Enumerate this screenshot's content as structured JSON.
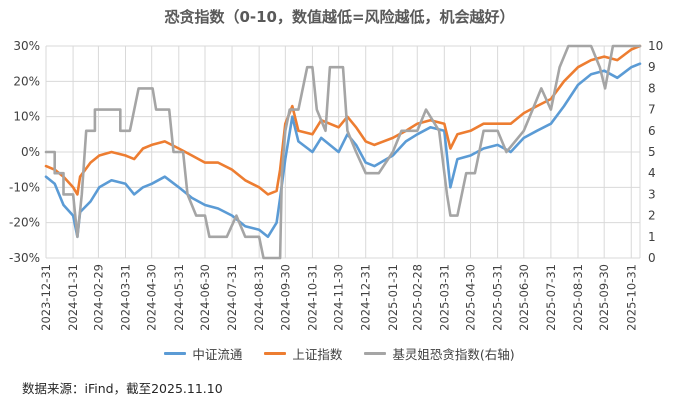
{
  "chart_data": {
    "type": "line",
    "title": "恐贪指数（0-10，数值越低=风险越低，机会越好）",
    "x_tick_labels": [
      "2023-12-31",
      "2024-01-31",
      "2024-02-29",
      "2024-03-31",
      "2024-04-30",
      "2024-05-31",
      "2024-06-30",
      "2024-07-31",
      "2024-08-31",
      "2024-09-30",
      "2024-10-31",
      "2024-11-30",
      "2024-12-31",
      "2025-01-31",
      "2025-02-28",
      "2025-03-31",
      "2025-04-30",
      "2025-05-31",
      "2025-06-30",
      "2025-07-31",
      "2025-08-31",
      "2025-09-30",
      "2025-10-31"
    ],
    "x_range": [
      "2023-12-31",
      "2025-11-10"
    ],
    "y_left": {
      "ticks": [
        "30%",
        "20%",
        "10%",
        "0%",
        "-10%",
        "-20%",
        "-30%"
      ],
      "range": [
        -30,
        30
      ],
      "unit": "%"
    },
    "y_right": {
      "ticks": [
        "10",
        "9",
        "8",
        "7",
        "6",
        "5",
        "4",
        "3",
        "2",
        "1",
        "0"
      ],
      "range": [
        0,
        10
      ]
    },
    "grid": true,
    "legend_position": "bottom",
    "series": [
      {
        "name": "中证流通",
        "axis": "left",
        "color": "#5b9bd5",
        "points": [
          [
            "2023-12-31",
            -7
          ],
          [
            "2024-01-10",
            -9
          ],
          [
            "2024-01-20",
            -15
          ],
          [
            "2024-01-31",
            -18
          ],
          [
            "2024-02-05",
            -24
          ],
          [
            "2024-02-08",
            -17
          ],
          [
            "2024-02-20",
            -14
          ],
          [
            "2024-03-01",
            -10
          ],
          [
            "2024-03-15",
            -8
          ],
          [
            "2024-03-31",
            -9
          ],
          [
            "2024-04-10",
            -12
          ],
          [
            "2024-04-20",
            -10
          ],
          [
            "2024-04-30",
            -9
          ],
          [
            "2024-05-15",
            -7
          ],
          [
            "2024-05-31",
            -10
          ],
          [
            "2024-06-15",
            -13
          ],
          [
            "2024-06-30",
            -15
          ],
          [
            "2024-07-15",
            -16
          ],
          [
            "2024-07-31",
            -18
          ],
          [
            "2024-08-15",
            -21
          ],
          [
            "2024-08-31",
            -22
          ],
          [
            "2024-09-10",
            -24
          ],
          [
            "2024-09-20",
            -20
          ],
          [
            "2024-09-24",
            -13
          ],
          [
            "2024-09-30",
            -2
          ],
          [
            "2024-10-08",
            10
          ],
          [
            "2024-10-15",
            3
          ],
          [
            "2024-10-31",
            0
          ],
          [
            "2024-11-10",
            4
          ],
          [
            "2024-11-30",
            0
          ],
          [
            "2024-12-10",
            5
          ],
          [
            "2024-12-20",
            2
          ],
          [
            "2024-12-31",
            -3
          ],
          [
            "2025-01-10",
            -4
          ],
          [
            "2025-01-31",
            -1
          ],
          [
            "2025-02-15",
            3
          ],
          [
            "2025-02-28",
            5
          ],
          [
            "2025-03-15",
            7
          ],
          [
            "2025-03-31",
            6
          ],
          [
            "2025-04-07",
            -10
          ],
          [
            "2025-04-15",
            -2
          ],
          [
            "2025-04-30",
            -1
          ],
          [
            "2025-05-15",
            1
          ],
          [
            "2025-05-31",
            2
          ],
          [
            "2025-06-15",
            0
          ],
          [
            "2025-06-30",
            4
          ],
          [
            "2025-07-15",
            6
          ],
          [
            "2025-07-31",
            8
          ],
          [
            "2025-08-15",
            13
          ],
          [
            "2025-08-31",
            19
          ],
          [
            "2025-09-15",
            22
          ],
          [
            "2025-09-30",
            23
          ],
          [
            "2025-10-15",
            21
          ],
          [
            "2025-10-31",
            24
          ],
          [
            "2025-11-10",
            25
          ]
        ]
      },
      {
        "name": "上证指数",
        "axis": "left",
        "color": "#ed7d31",
        "points": [
          [
            "2023-12-31",
            -4
          ],
          [
            "2024-01-10",
            -5
          ],
          [
            "2024-01-20",
            -7
          ],
          [
            "2024-01-31",
            -10
          ],
          [
            "2024-02-05",
            -12
          ],
          [
            "2024-02-08",
            -7
          ],
          [
            "2024-02-20",
            -3
          ],
          [
            "2024-03-01",
            -1
          ],
          [
            "2024-03-15",
            0
          ],
          [
            "2024-03-31",
            -1
          ],
          [
            "2024-04-10",
            -2
          ],
          [
            "2024-04-20",
            1
          ],
          [
            "2024-04-30",
            2
          ],
          [
            "2024-05-15",
            3
          ],
          [
            "2024-05-31",
            1
          ],
          [
            "2024-06-15",
            -1
          ],
          [
            "2024-06-30",
            -3
          ],
          [
            "2024-07-15",
            -3
          ],
          [
            "2024-07-31",
            -5
          ],
          [
            "2024-08-15",
            -8
          ],
          [
            "2024-08-31",
            -10
          ],
          [
            "2024-09-10",
            -12
          ],
          [
            "2024-09-20",
            -11
          ],
          [
            "2024-09-24",
            -5
          ],
          [
            "2024-09-30",
            8
          ],
          [
            "2024-10-08",
            13
          ],
          [
            "2024-10-15",
            6
          ],
          [
            "2024-10-31",
            5
          ],
          [
            "2024-11-10",
            9
          ],
          [
            "2024-11-30",
            7
          ],
          [
            "2024-12-10",
            10
          ],
          [
            "2024-12-20",
            7
          ],
          [
            "2024-12-31",
            3
          ],
          [
            "2025-01-10",
            2
          ],
          [
            "2025-01-31",
            4
          ],
          [
            "2025-02-15",
            6
          ],
          [
            "2025-02-28",
            8
          ],
          [
            "2025-03-15",
            9
          ],
          [
            "2025-03-31",
            8
          ],
          [
            "2025-04-07",
            1
          ],
          [
            "2025-04-15",
            5
          ],
          [
            "2025-04-30",
            6
          ],
          [
            "2025-05-15",
            8
          ],
          [
            "2025-05-31",
            8
          ],
          [
            "2025-06-15",
            8
          ],
          [
            "2025-06-30",
            11
          ],
          [
            "2025-07-15",
            13
          ],
          [
            "2025-07-31",
            15
          ],
          [
            "2025-08-15",
            20
          ],
          [
            "2025-08-31",
            24
          ],
          [
            "2025-09-15",
            26
          ],
          [
            "2025-09-30",
            27
          ],
          [
            "2025-10-15",
            26
          ],
          [
            "2025-10-31",
            29
          ],
          [
            "2025-11-10",
            30
          ]
        ]
      },
      {
        "name": "基灵姐恐贪指数(右轴)",
        "axis": "right",
        "color": "#a5a5a5",
        "points": [
          [
            "2023-12-31",
            5
          ],
          [
            "2024-01-10",
            5
          ],
          [
            "2024-01-10",
            4
          ],
          [
            "2024-01-20",
            4
          ],
          [
            "2024-01-20",
            3
          ],
          [
            "2024-01-31",
            3
          ],
          [
            "2024-02-05",
            1
          ],
          [
            "2024-02-10",
            3
          ],
          [
            "2024-02-15",
            6
          ],
          [
            "2024-02-25",
            6
          ],
          [
            "2024-02-25",
            7
          ],
          [
            "2024-03-25",
            7
          ],
          [
            "2024-03-25",
            6
          ],
          [
            "2024-04-05",
            6
          ],
          [
            "2024-04-15",
            8
          ],
          [
            "2024-05-01",
            8
          ],
          [
            "2024-05-05",
            7
          ],
          [
            "2024-05-20",
            7
          ],
          [
            "2024-05-25",
            5
          ],
          [
            "2024-06-05",
            5
          ],
          [
            "2024-06-10",
            3
          ],
          [
            "2024-06-20",
            2
          ],
          [
            "2024-06-30",
            2
          ],
          [
            "2024-07-05",
            1
          ],
          [
            "2024-07-25",
            1
          ],
          [
            "2024-08-05",
            2
          ],
          [
            "2024-08-15",
            1
          ],
          [
            "2024-08-31",
            1
          ],
          [
            "2024-09-05",
            0
          ],
          [
            "2024-09-24",
            0
          ],
          [
            "2024-09-26",
            4
          ],
          [
            "2024-09-30",
            6
          ],
          [
            "2024-10-05",
            7
          ],
          [
            "2024-10-15",
            7
          ],
          [
            "2024-10-25",
            9
          ],
          [
            "2024-10-31",
            9
          ],
          [
            "2024-11-05",
            7
          ],
          [
            "2024-11-15",
            6
          ],
          [
            "2024-11-20",
            9
          ],
          [
            "2024-12-05",
            9
          ],
          [
            "2024-12-10",
            6
          ],
          [
            "2024-12-20",
            5
          ],
          [
            "2024-12-31",
            4
          ],
          [
            "2025-01-15",
            4
          ],
          [
            "2025-01-31",
            5
          ],
          [
            "2025-02-10",
            6
          ],
          [
            "2025-02-28",
            6
          ],
          [
            "2025-03-10",
            7
          ],
          [
            "2025-03-25",
            6
          ],
          [
            "2025-04-03",
            3
          ],
          [
            "2025-04-07",
            2
          ],
          [
            "2025-04-15",
            2
          ],
          [
            "2025-04-25",
            4
          ],
          [
            "2025-05-05",
            4
          ],
          [
            "2025-05-15",
            6
          ],
          [
            "2025-05-31",
            6
          ],
          [
            "2025-06-10",
            5
          ],
          [
            "2025-06-30",
            6
          ],
          [
            "2025-07-10",
            7
          ],
          [
            "2025-07-20",
            8
          ],
          [
            "2025-07-31",
            7
          ],
          [
            "2025-08-10",
            9
          ],
          [
            "2025-08-20",
            10
          ],
          [
            "2025-08-31",
            10
          ],
          [
            "2025-09-15",
            10
          ],
          [
            "2025-09-25",
            9
          ],
          [
            "2025-10-01",
            8
          ],
          [
            "2025-10-10",
            10
          ],
          [
            "2025-10-31",
            10
          ],
          [
            "2025-11-10",
            10
          ]
        ]
      }
    ]
  },
  "source_note": "数据来源：iFind，截至2025.11.10"
}
